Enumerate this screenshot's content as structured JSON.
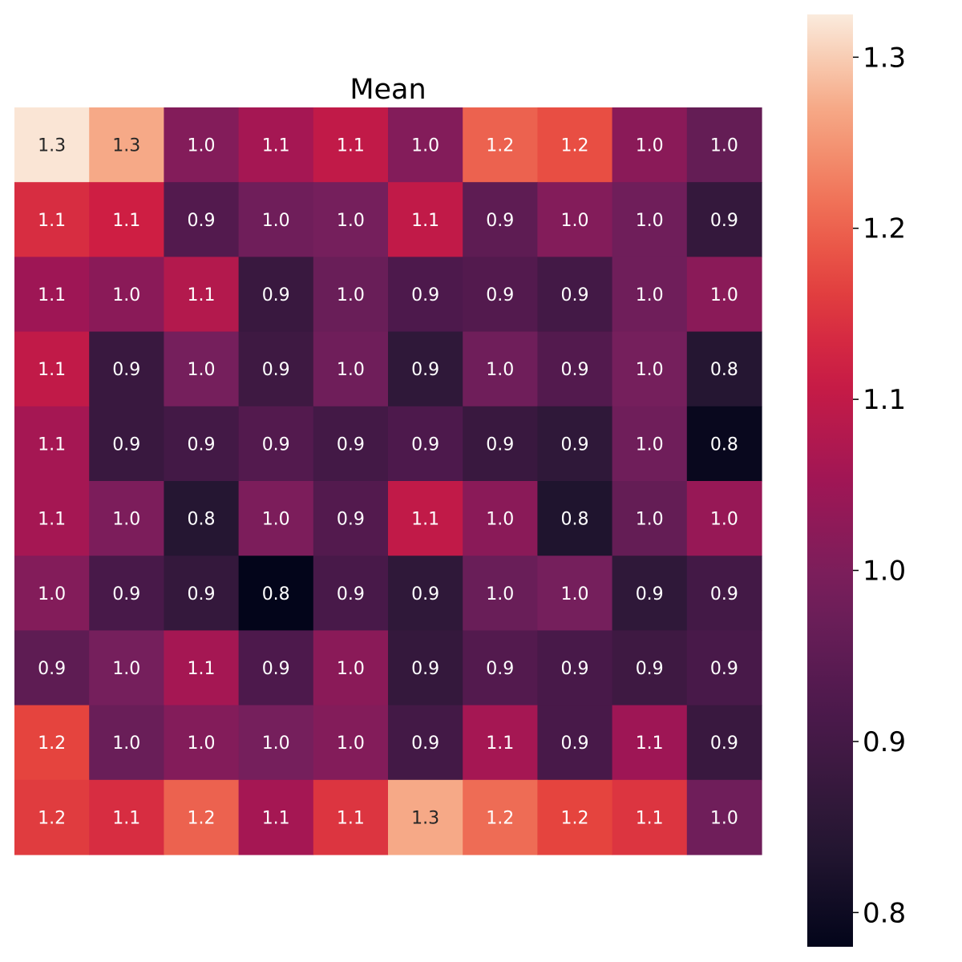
{
  "chart_data": {
    "type": "heatmap",
    "title": "Mean",
    "xlabel": "",
    "ylabel": "",
    "grid": false,
    "annotated": true,
    "value_format": "1 decimal",
    "colormap": "rocket",
    "colorbar": {
      "placement": "right",
      "min": 0.78,
      "max": 1.325,
      "ticks": [
        0.8,
        0.9,
        1.0,
        1.1,
        1.2,
        1.3
      ],
      "tick_labels": [
        "0.8",
        "0.9",
        "1.0",
        "1.1",
        "1.2",
        "1.3"
      ]
    },
    "rows": 10,
    "cols": 10,
    "values": [
      [
        1.32,
        1.27,
        1.01,
        1.06,
        1.1,
        1.01,
        1.2,
        1.18,
        1.02,
        0.96
      ],
      [
        1.14,
        1.12,
        0.93,
        0.98,
        0.99,
        1.1,
        0.95,
        1.01,
        0.98,
        0.87
      ],
      [
        1.05,
        1.02,
        1.08,
        0.88,
        0.97,
        0.92,
        0.93,
        0.9,
        0.98,
        1.02
      ],
      [
        1.1,
        0.88,
        0.99,
        0.89,
        0.98,
        0.86,
        0.98,
        0.93,
        0.99,
        0.84
      ],
      [
        1.06,
        0.88,
        0.9,
        0.93,
        0.9,
        0.92,
        0.88,
        0.86,
        0.98,
        0.79
      ],
      [
        1.06,
        1.0,
        0.84,
        1.0,
        0.93,
        1.1,
        1.02,
        0.83,
        0.96,
        1.04
      ],
      [
        1.01,
        0.91,
        0.87,
        0.78,
        0.91,
        0.86,
        0.97,
        0.99,
        0.86,
        0.9
      ],
      [
        0.95,
        0.99,
        1.06,
        0.92,
        1.02,
        0.87,
        0.93,
        0.91,
        0.89,
        0.91
      ],
      [
        1.17,
        0.97,
        1.01,
        0.99,
        1.01,
        0.9,
        1.06,
        0.91,
        1.05,
        0.88
      ],
      [
        1.16,
        1.14,
        1.2,
        1.06,
        1.15,
        1.27,
        1.21,
        1.17,
        1.15,
        0.98
      ]
    ]
  }
}
